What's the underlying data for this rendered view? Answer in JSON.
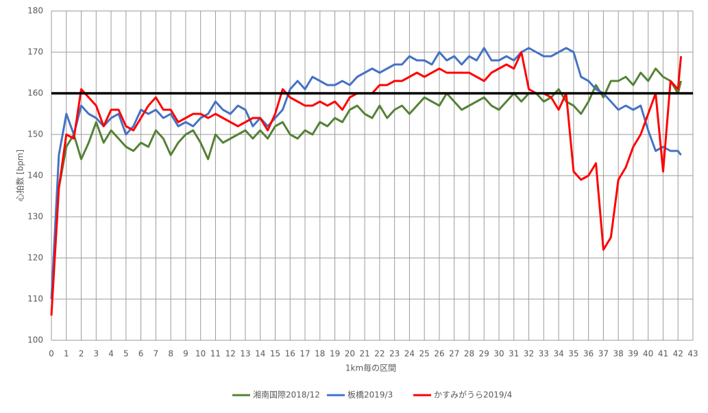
{
  "chart_data": {
    "type": "line",
    "x_label": "1km毎の区間",
    "y_label": "心拍数 [bpm]",
    "xlim": [
      0,
      43
    ],
    "ylim": [
      100,
      180
    ],
    "xticks": [
      0,
      1,
      2,
      3,
      4,
      5,
      6,
      7,
      8,
      9,
      10,
      11,
      12,
      13,
      14,
      15,
      16,
      17,
      18,
      19,
      20,
      21,
      22,
      23,
      24,
      25,
      26,
      27,
      28,
      29,
      30,
      31,
      32,
      33,
      34,
      35,
      36,
      37,
      38,
      39,
      40,
      41,
      42,
      43
    ],
    "yticks": [
      100,
      110,
      120,
      130,
      140,
      150,
      160,
      170,
      180
    ],
    "grid": true,
    "legend": "bottom",
    "hline": {
      "value": 160,
      "color": "#000000"
    },
    "x": [
      0,
      0.5,
      1,
      1.5,
      2,
      2.5,
      3,
      3.5,
      4,
      4.5,
      5,
      5.5,
      6,
      6.5,
      7,
      7.5,
      8,
      8.5,
      9,
      9.5,
      10,
      10.5,
      11,
      11.5,
      12,
      12.5,
      13,
      13.5,
      14,
      14.5,
      15,
      15.5,
      16,
      16.5,
      17,
      17.5,
      18,
      18.5,
      19,
      19.5,
      20,
      20.5,
      21,
      21.5,
      22,
      22.5,
      23,
      23.5,
      24,
      24.5,
      25,
      25.5,
      26,
      26.5,
      27,
      27.5,
      28,
      28.5,
      29,
      29.5,
      30,
      30.5,
      31,
      31.5,
      32,
      32.5,
      33,
      33.5,
      34,
      34.5,
      35,
      35.5,
      36,
      36.5,
      37,
      37.5,
      38,
      38.5,
      39,
      39.5,
      40,
      40.5,
      41,
      41.5,
      42,
      42.2
    ],
    "series": [
      {
        "name": "湘南国際2018/12",
        "color": "#548235",
        "values": [
          null,
          137,
          147,
          150,
          144,
          148,
          153,
          148,
          151,
          149,
          147,
          146,
          148,
          147,
          151,
          149,
          145,
          148,
          150,
          151,
          148,
          144,
          150,
          148,
          149,
          150,
          151,
          149,
          151,
          149,
          152,
          153,
          150,
          149,
          151,
          150,
          153,
          152,
          154,
          153,
          156,
          157,
          155,
          154,
          157,
          154,
          156,
          157,
          155,
          157,
          159,
          158,
          157,
          160,
          158,
          156,
          157,
          158,
          159,
          157,
          156,
          158,
          160,
          158,
          160,
          160,
          158,
          159,
          161,
          158,
          157,
          155,
          158,
          162,
          159,
          163,
          163,
          164,
          162,
          165,
          163,
          166,
          164,
          163,
          160,
          163
        ]
      },
      {
        "name": "板橋2019/3",
        "color": "#4472c4",
        "values": [
          110,
          145,
          155,
          150,
          157,
          155,
          154,
          152,
          154,
          155,
          150,
          152,
          156,
          155,
          156,
          154,
          155,
          152,
          153,
          152,
          154,
          155,
          158,
          156,
          155,
          157,
          156,
          152,
          154,
          152,
          154,
          156,
          161,
          163,
          161,
          164,
          163,
          162,
          162,
          163,
          162,
          164,
          165,
          166,
          165,
          166,
          167,
          167,
          169,
          168,
          168,
          167,
          170,
          168,
          169,
          167,
          169,
          168,
          171,
          168,
          168,
          169,
          168,
          170,
          171,
          170,
          169,
          169,
          170,
          171,
          170,
          164,
          163,
          161,
          160,
          158,
          156,
          157,
          156,
          157,
          151,
          146,
          147,
          146,
          146,
          145
        ]
      },
      {
        "name": "かすみがうら2019/4",
        "color": "#ff0000",
        "values": [
          106,
          137,
          150,
          149,
          161,
          159,
          157,
          152,
          156,
          156,
          152,
          151,
          154,
          157,
          159,
          156,
          156,
          153,
          154,
          155,
          155,
          154,
          155,
          154,
          153,
          152,
          153,
          154,
          154,
          151,
          155,
          161,
          159,
          158,
          157,
          157,
          158,
          157,
          158,
          156,
          159,
          160,
          160,
          160,
          162,
          162,
          163,
          163,
          164,
          165,
          164,
          165,
          166,
          165,
          165,
          165,
          165,
          164,
          163,
          165,
          166,
          167,
          166,
          170,
          161,
          160,
          160,
          159,
          156,
          160,
          141,
          139,
          140,
          143,
          122,
          125,
          139,
          142,
          147,
          150,
          155,
          160,
          141,
          163,
          161,
          169
        ]
      }
    ]
  }
}
